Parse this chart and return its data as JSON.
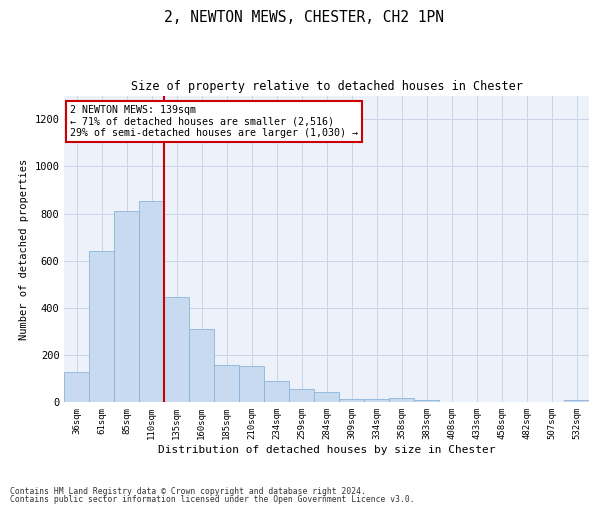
{
  "title_line1": "2, NEWTON MEWS, CHESTER, CH2 1PN",
  "title_line2": "Size of property relative to detached houses in Chester",
  "xlabel": "Distribution of detached houses by size in Chester",
  "ylabel": "Number of detached properties",
  "categories": [
    "36sqm",
    "61sqm",
    "85sqm",
    "110sqm",
    "135sqm",
    "160sqm",
    "185sqm",
    "210sqm",
    "234sqm",
    "259sqm",
    "284sqm",
    "309sqm",
    "334sqm",
    "358sqm",
    "383sqm",
    "408sqm",
    "433sqm",
    "458sqm",
    "482sqm",
    "507sqm",
    "532sqm"
  ],
  "values": [
    130,
    640,
    810,
    855,
    445,
    310,
    160,
    155,
    90,
    55,
    42,
    14,
    15,
    20,
    12,
    2,
    2,
    2,
    1,
    1,
    10
  ],
  "bar_color": "#c8daf0",
  "bar_edge_color": "#8ab4d8",
  "bar_edge_width": 0.6,
  "vline_color": "#cc0000",
  "vline_position": 3.5,
  "annotation_text": "2 NEWTON MEWS: 139sqm\n← 71% of detached houses are smaller (2,516)\n29% of semi-detached houses are larger (1,030) →",
  "annotation_box_edgecolor": "#cc0000",
  "ylim": [
    0,
    1300
  ],
  "yticks": [
    0,
    200,
    400,
    600,
    800,
    1000,
    1200
  ],
  "grid_color": "#c8d4e8",
  "bg_color": "#edf2fa",
  "footer_line1": "Contains HM Land Registry data © Crown copyright and database right 2024.",
  "footer_line2": "Contains public sector information licensed under the Open Government Licence v3.0."
}
